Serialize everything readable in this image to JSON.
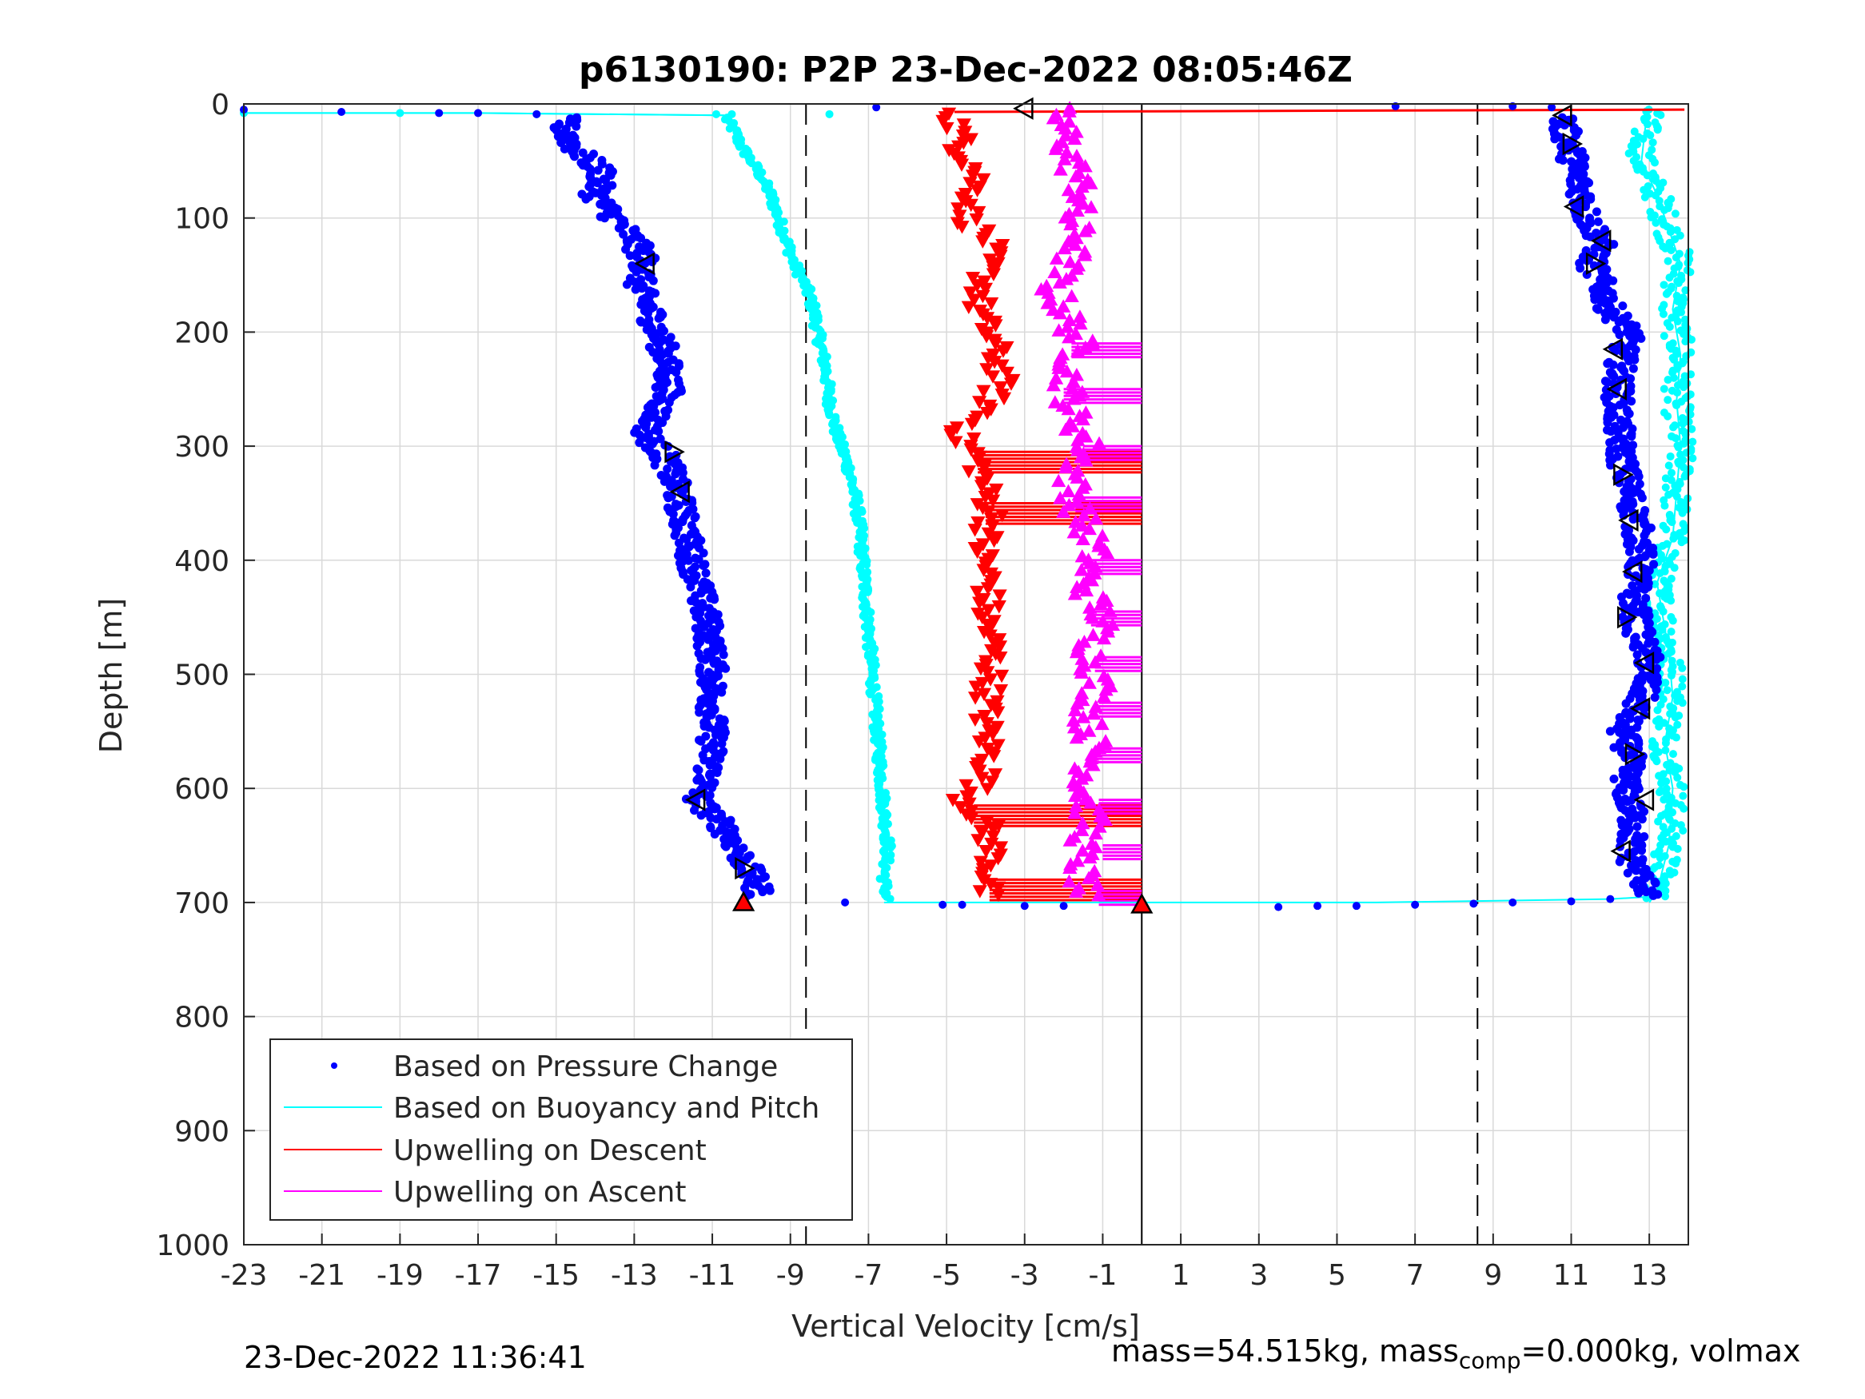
{
  "chart_data": {
    "type": "scatter",
    "title": "p6130190: P2P 23-Dec-2022 08:05:46Z",
    "xlabel": "Vertical Velocity [cm/s]",
    "ylabel": "Depth [m]",
    "xlim": [
      -23,
      14
    ],
    "ylim": [
      0,
      1000
    ],
    "y_reversed": true,
    "grid": true,
    "legend_position": "bottom-left",
    "xticks": [
      "-23",
      "-21",
      "-19",
      "-17",
      "-15",
      "-13",
      "-11",
      "-9",
      "-7",
      "-5",
      "-3",
      "-1",
      "1",
      "3",
      "5",
      "7",
      "9",
      "11",
      "13"
    ],
    "yticks": [
      "0",
      "100",
      "200",
      "300",
      "400",
      "500",
      "600",
      "700",
      "800",
      "900",
      "1000"
    ],
    "vertical_lines": [
      {
        "x": -8.6,
        "style": "dashed"
      },
      {
        "x": 0,
        "style": "solid"
      },
      {
        "x": 8.6,
        "style": "dashed"
      }
    ],
    "series": [
      {
        "name": "Based on Pressure Change",
        "color": "#0000ff",
        "marker": "dot",
        "descent": [
          [
            -14.8,
            20
          ],
          [
            -14.5,
            40
          ],
          [
            -13.8,
            60
          ],
          [
            -14,
            80
          ],
          [
            -13.5,
            100
          ],
          [
            -13,
            120
          ],
          [
            -12.7,
            140
          ],
          [
            -12.9,
            160
          ],
          [
            -12.6,
            180
          ],
          [
            -12.4,
            200
          ],
          [
            -12.2,
            220
          ],
          [
            -12.1,
            250
          ],
          [
            -12.4,
            270
          ],
          [
            -12.7,
            290
          ],
          [
            -12.2,
            310
          ],
          [
            -11.9,
            340
          ],
          [
            -11.7,
            370
          ],
          [
            -11.5,
            400
          ],
          [
            -11.3,
            430
          ],
          [
            -11.1,
            460
          ],
          [
            -11.0,
            490
          ],
          [
            -11.0,
            520
          ],
          [
            -11.0,
            560
          ],
          [
            -11.1,
            590
          ],
          [
            -11.4,
            610
          ],
          [
            -10.8,
            630
          ],
          [
            -10.4,
            650
          ],
          [
            -10.1,
            670
          ],
          [
            -9.8,
            690
          ]
        ],
        "ascent": [
          [
            13.0,
            690
          ],
          [
            12.5,
            660
          ],
          [
            12.6,
            630
          ],
          [
            12.4,
            600
          ],
          [
            12.5,
            570
          ],
          [
            12.3,
            550
          ],
          [
            12.8,
            520
          ],
          [
            13.0,
            490
          ],
          [
            12.7,
            460
          ],
          [
            12.6,
            430
          ],
          [
            12.8,
            400
          ],
          [
            12.7,
            370
          ],
          [
            12.5,
            340
          ],
          [
            12.3,
            310
          ],
          [
            12.2,
            280
          ],
          [
            12.2,
            250
          ],
          [
            12.3,
            220
          ],
          [
            12.5,
            200
          ],
          [
            12.0,
            180
          ],
          [
            11.8,
            160
          ],
          [
            11.5,
            140
          ],
          [
            11.8,
            120
          ],
          [
            11.4,
            100
          ],
          [
            11.3,
            80
          ],
          [
            11.1,
            60
          ],
          [
            11.0,
            40
          ],
          [
            10.8,
            20
          ]
        ],
        "surface": [
          [
            -23,
            5
          ],
          [
            -20.5,
            7
          ],
          [
            -18,
            8
          ],
          [
            -17,
            8
          ],
          [
            -15.5,
            9
          ],
          [
            -6.8,
            3
          ],
          [
            6.5,
            2
          ],
          [
            9.5,
            2
          ],
          [
            10.5,
            3
          ]
        ],
        "bottom": [
          [
            -7.6,
            700
          ],
          [
            -5.1,
            702
          ],
          [
            -4.6,
            702
          ],
          [
            -3.0,
            703
          ],
          [
            -2.0,
            703
          ],
          [
            3.5,
            704
          ],
          [
            4.5,
            703
          ],
          [
            5.5,
            703
          ],
          [
            7.0,
            702
          ],
          [
            8.5,
            701
          ],
          [
            9.5,
            700
          ],
          [
            11.0,
            699
          ],
          [
            12.0,
            697
          ]
        ]
      },
      {
        "name": "Based on Buoyancy and Pitch",
        "color": "#00ffff",
        "marker": "line+dot",
        "descent": [
          [
            -23,
            8
          ],
          [
            -17,
            8
          ],
          [
            -10.7,
            10
          ],
          [
            -10.5,
            20
          ],
          [
            -10.2,
            40
          ],
          [
            -9.8,
            60
          ],
          [
            -9.5,
            80
          ],
          [
            -9.3,
            100
          ],
          [
            -9.1,
            120
          ],
          [
            -8.9,
            140
          ],
          [
            -8.6,
            160
          ],
          [
            -8.4,
            180
          ],
          [
            -8.3,
            200
          ],
          [
            -8.1,
            230
          ],
          [
            -8.0,
            260
          ],
          [
            -7.8,
            290
          ],
          [
            -7.5,
            320
          ],
          [
            -7.3,
            350
          ],
          [
            -7.2,
            380
          ],
          [
            -7.1,
            420
          ],
          [
            -7.0,
            460
          ],
          [
            -6.9,
            500
          ],
          [
            -6.8,
            540
          ],
          [
            -6.7,
            580
          ],
          [
            -6.6,
            620
          ],
          [
            -6.5,
            650
          ],
          [
            -6.6,
            680
          ],
          [
            -6.5,
            700
          ]
        ],
        "ascent": [
          [
            13.0,
            700
          ],
          [
            13.2,
            690
          ],
          [
            13.5,
            650
          ],
          [
            13.6,
            600
          ],
          [
            13.4,
            560
          ],
          [
            13.6,
            520
          ],
          [
            13.5,
            480
          ],
          [
            13.2,
            420
          ],
          [
            13.6,
            380
          ],
          [
            13.7,
            340
          ],
          [
            13.8,
            300
          ],
          [
            13.7,
            260
          ],
          [
            13.8,
            220
          ],
          [
            13.6,
            180
          ],
          [
            13.8,
            140
          ],
          [
            13.5,
            110
          ],
          [
            13.2,
            80
          ],
          [
            12.8,
            50
          ],
          [
            12.9,
            20
          ],
          [
            13.0,
            5
          ]
        ],
        "bottom_line": [
          [
            -6.6,
            700
          ],
          [
            0,
            700
          ],
          [
            6,
            700
          ],
          [
            12,
            697
          ],
          [
            13,
            695
          ]
        ]
      },
      {
        "name": "Upwelling on Descent",
        "color": "#ff0000",
        "marker": "triangle-down",
        "points": [
          [
            -4.8,
            10
          ],
          [
            -4.6,
            40
          ],
          [
            -4.2,
            60
          ],
          [
            -4.3,
            80
          ],
          [
            -4.5,
            100
          ],
          [
            -3.9,
            120
          ],
          [
            -4.0,
            150
          ],
          [
            -4.2,
            180
          ],
          [
            -3.8,
            210
          ],
          [
            -3.6,
            240
          ],
          [
            -4.0,
            270
          ],
          [
            -4.7,
            290
          ],
          [
            -4.2,
            310
          ],
          [
            -4.0,
            340
          ],
          [
            -3.8,
            360
          ],
          [
            -4.1,
            390
          ],
          [
            -3.9,
            420
          ],
          [
            -4.0,
            450
          ],
          [
            -3.8,
            480
          ],
          [
            -3.9,
            510
          ],
          [
            -4.0,
            540
          ],
          [
            -3.9,
            570
          ],
          [
            -4.0,
            590
          ],
          [
            -4.5,
            610
          ],
          [
            -4.0,
            630
          ],
          [
            -3.8,
            660
          ],
          [
            -4.0,
            690
          ]
        ],
        "spikes": [
          [
            -4.2,
            305
          ],
          [
            -4.0,
            350
          ],
          [
            -4.3,
            615
          ],
          [
            -3.9,
            680
          ]
        ],
        "surface_line": [
          [
            -4.8,
            7
          ],
          [
            13.9,
            5
          ]
        ]
      },
      {
        "name": "Upwelling on Ascent",
        "color": "#ff00ff",
        "marker": "triangle-up",
        "points": [
          [
            -1.5,
            690
          ],
          [
            -1.6,
            660
          ],
          [
            -1.3,
            630
          ],
          [
            -1.5,
            600
          ],
          [
            -1.2,
            570
          ],
          [
            -1.4,
            540
          ],
          [
            -1.1,
            510
          ],
          [
            -1.3,
            480
          ],
          [
            -1.0,
            450
          ],
          [
            -1.5,
            420
          ],
          [
            -1.2,
            390
          ],
          [
            -1.6,
            360
          ],
          [
            -1.8,
            330
          ],
          [
            -1.4,
            300
          ],
          [
            -1.8,
            270
          ],
          [
            -1.9,
            240
          ],
          [
            -1.6,
            210
          ],
          [
            -2.0,
            180
          ],
          [
            -2.3,
            160
          ],
          [
            -1.9,
            140
          ],
          [
            -1.6,
            120
          ],
          [
            -1.8,
            100
          ],
          [
            -1.5,
            80
          ],
          [
            -1.7,
            60
          ],
          [
            -1.9,
            40
          ],
          [
            -2.0,
            20
          ],
          [
            -2.2,
            5
          ]
        ],
        "spikes": [
          [
            -1.8,
            210
          ],
          [
            -2.0,
            250
          ],
          [
            -1.5,
            300
          ],
          [
            -1.7,
            345
          ],
          [
            -1.4,
            400
          ],
          [
            -1.3,
            445
          ],
          [
            -1.2,
            485
          ],
          [
            -1.1,
            525
          ],
          [
            -1.2,
            565
          ],
          [
            -1.1,
            610
          ],
          [
            -1.0,
            650
          ],
          [
            -1.1,
            690
          ]
        ]
      }
    ],
    "markers": {
      "open_triangles": [
        [
          -12.7,
          140
        ],
        [
          -12.0,
          305
        ],
        [
          -11.8,
          340
        ],
        [
          -11.4,
          610
        ],
        [
          -10.2,
          670
        ],
        [
          -3.0,
          4
        ],
        [
          10.8,
          10
        ],
        [
          11.0,
          35
        ],
        [
          11.1,
          90
        ],
        [
          11.8,
          120
        ],
        [
          11.6,
          140
        ],
        [
          12.1,
          215
        ],
        [
          12.2,
          250
        ],
        [
          12.3,
          325
        ],
        [
          12.5,
          365
        ],
        [
          12.6,
          410
        ],
        [
          12.4,
          450
        ],
        [
          12.9,
          490
        ],
        [
          12.8,
          530
        ],
        [
          12.6,
          570
        ],
        [
          12.9,
          610
        ],
        [
          12.3,
          655
        ]
      ],
      "filled_red_triangles": [
        [
          -10.2,
          700
        ],
        [
          0,
          702
        ]
      ]
    },
    "legend": [
      "Based on Pressure Change",
      "Based on Buoyancy and Pitch",
      "Upwelling on Descent",
      "Upwelling on Ascent"
    ]
  },
  "footer": {
    "timestamp": "23-Dec-2022 11:36:41",
    "mass_text_1": "mass=54.515kg, mass",
    "mass_sub": "comp",
    "mass_text_2": "=0.000kg, volmax"
  }
}
